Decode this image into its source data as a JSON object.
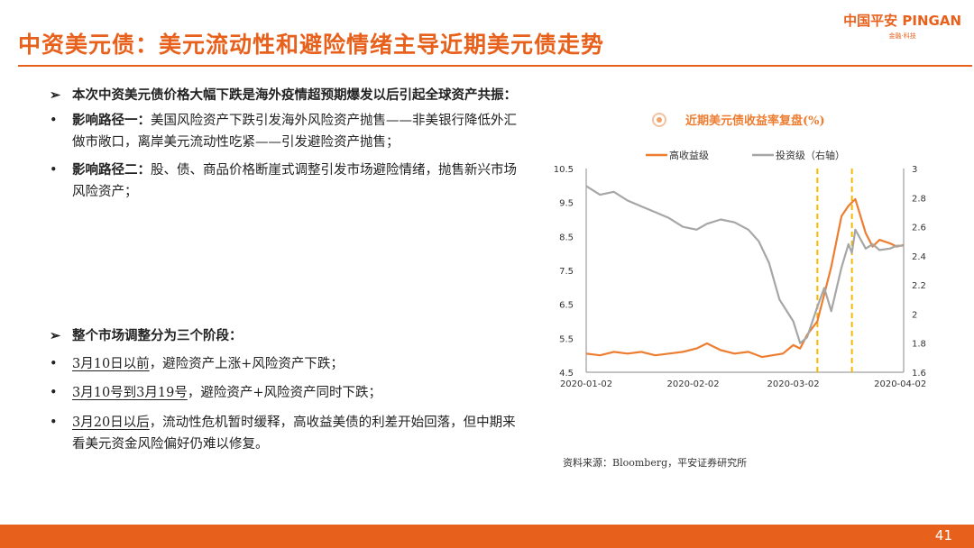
{
  "header": {
    "title": "中资美元债：美元流动性和避险情绪主导近期美元债走势",
    "logo_main": "中国平安 PINGAN",
    "logo_sub": "金融·科技"
  },
  "section1": {
    "heading": "本次中资美元债价格大幅下跌是海外疫情超预期爆发以后引起全球资产共振：",
    "path1_label": "影响路径一：",
    "path1_text": "美国风险资产下跌引发海外风险资产抛售——非美银行降低外汇做市敞口，离岸美元流动性吃紧——引发避险资产抛售；",
    "path2_label": "影响路径二：",
    "path2_text": "股、债、商品价格断崖式调整引发市场避险情绪，抛售新兴市场风险资产；"
  },
  "section2": {
    "heading": "整个市场调整分为三个阶段：",
    "stage1_date": "3月10日以前",
    "stage1_text": "，避险资产上涨+风险资产下跌；",
    "stage2_date": "3月10号到3月19号",
    "stage2_text": "，避险资产+风险资产同时下跌；",
    "stage3_date": "3月20日以后",
    "stage3_text": "，流动性危机暂时缓释，高收益美债的利差开始回落，但中期来看美元资金风险偏好仍难以修复。"
  },
  "chart_data": {
    "type": "line",
    "title": "近期美元债收益率复盘(%)",
    "xlabel": "",
    "x_ticks": [
      "2020-01-02",
      "2020-02-02",
      "2020-03-02",
      "2020-04-02"
    ],
    "y_left": {
      "ticks": [
        "4.5",
        "5.5",
        "6.5",
        "7.5",
        "8.5",
        "9.5",
        "10.5"
      ],
      "ylim": [
        4.5,
        10.5
      ]
    },
    "y_right": {
      "ticks": [
        "1.6",
        "1.8",
        "2",
        "2.2",
        "2.4",
        "2.6",
        "2.8",
        "3"
      ],
      "ylim": [
        1.6,
        3.0
      ]
    },
    "series": [
      {
        "name": "高收益级",
        "axis": "left",
        "color": "#ed7d31",
        "x": [
          "2020-01-02",
          "2020-01-06",
          "2020-01-10",
          "2020-01-14",
          "2020-01-18",
          "2020-01-22",
          "2020-01-26",
          "2020-01-30",
          "2020-02-03",
          "2020-02-06",
          "2020-02-10",
          "2020-02-14",
          "2020-02-18",
          "2020-02-22",
          "2020-02-25",
          "2020-02-28",
          "2020-03-02",
          "2020-03-04",
          "2020-03-06",
          "2020-03-09",
          "2020-03-11",
          "2020-03-13",
          "2020-03-16",
          "2020-03-18",
          "2020-03-19",
          "2020-03-20",
          "2020-03-23",
          "2020-03-25",
          "2020-03-27",
          "2020-03-30",
          "2020-04-01",
          "2020-04-03"
        ],
        "y": [
          5.05,
          5.0,
          5.1,
          5.05,
          5.1,
          5.0,
          5.05,
          5.1,
          5.2,
          5.35,
          5.15,
          5.05,
          5.1,
          4.95,
          5.0,
          5.05,
          5.3,
          5.2,
          5.6,
          6.0,
          6.8,
          7.6,
          9.1,
          9.4,
          9.5,
          9.6,
          8.6,
          8.2,
          8.4,
          8.3,
          8.2,
          8.25
        ]
      },
      {
        "name": "投资级（右轴）",
        "axis": "right",
        "color": "#a6a6a6",
        "x": [
          "2020-01-02",
          "2020-01-06",
          "2020-01-10",
          "2020-01-14",
          "2020-01-18",
          "2020-01-22",
          "2020-01-26",
          "2020-01-30",
          "2020-02-03",
          "2020-02-06",
          "2020-02-10",
          "2020-02-14",
          "2020-02-18",
          "2020-02-21",
          "2020-02-24",
          "2020-02-27",
          "2020-03-02",
          "2020-03-04",
          "2020-03-06",
          "2020-03-09",
          "2020-03-11",
          "2020-03-13",
          "2020-03-16",
          "2020-03-18",
          "2020-03-19",
          "2020-03-20",
          "2020-03-23",
          "2020-03-25",
          "2020-03-27",
          "2020-03-30",
          "2020-04-01",
          "2020-04-03"
        ],
        "y": [
          2.88,
          2.82,
          2.84,
          2.78,
          2.74,
          2.7,
          2.66,
          2.6,
          2.58,
          2.62,
          2.65,
          2.63,
          2.58,
          2.5,
          2.35,
          2.1,
          1.95,
          1.8,
          1.84,
          2.05,
          2.18,
          2.02,
          2.32,
          2.48,
          2.42,
          2.58,
          2.45,
          2.48,
          2.44,
          2.45,
          2.47,
          2.47
        ]
      }
    ],
    "markers": [
      "2020-03-09",
      "2020-03-19"
    ],
    "legend_placement": "top"
  },
  "source": "资料来源：Bloomberg，平安证券研究所",
  "page_number": "41"
}
